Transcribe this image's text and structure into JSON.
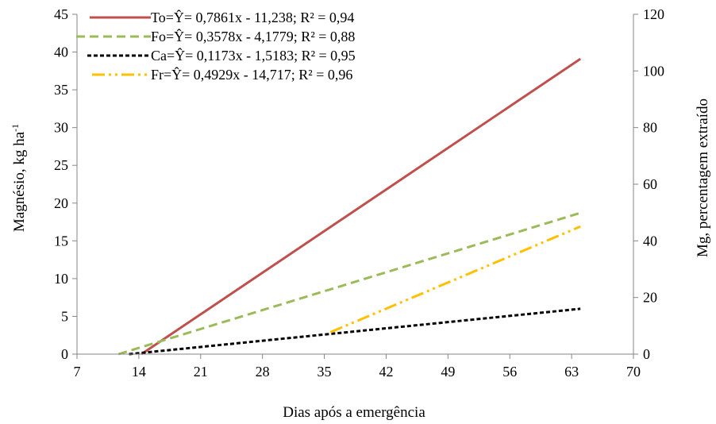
{
  "chart_data": {
    "type": "line",
    "xlabel": "Dias após a emergência",
    "ylabel": "Magnésio, kg ha",
    "ylabel_sup": "-1",
    "y2label": "Mg, percentagem extraído",
    "xlim": [
      7,
      70
    ],
    "ylim": [
      0,
      45
    ],
    "y2lim": [
      0,
      120
    ],
    "xticks": [
      7,
      14,
      21,
      28,
      35,
      42,
      49,
      56,
      63,
      70
    ],
    "yticks": [
      0,
      5,
      10,
      15,
      20,
      25,
      30,
      35,
      40,
      45
    ],
    "y2ticks": [
      0,
      20,
      40,
      60,
      80,
      100,
      120
    ],
    "grid": false,
    "legend_position": "top-left",
    "series": [
      {
        "name": "To=Ŷ= 0,7861x - 11,238; R² = 0,94",
        "color": "#c0504d",
        "dash": "solid",
        "x": [
          14.3,
          64
        ],
        "y": [
          0,
          39.1
        ]
      },
      {
        "name": "Fo=Ŷ= 0,3578x - 4,1779; R² = 0,88",
        "color": "#9bbb59",
        "dash": "dash",
        "x": [
          11.7,
          64
        ],
        "y": [
          0,
          18.7
        ]
      },
      {
        "name": "Ca=Ŷ= 0,1173x - 1,5183; R² = 0,95",
        "color": "#000000",
        "dash": "dot",
        "x": [
          12.9,
          64
        ],
        "y": [
          0,
          6.0
        ]
      },
      {
        "name": "Fr=Ŷ= 0,4929x - 14,717; R² = 0,96",
        "color": "#ffc000",
        "dash": "dashdotdot",
        "x": [
          35.7,
          64
        ],
        "y": [
          2.9,
          16.9
        ]
      }
    ]
  }
}
